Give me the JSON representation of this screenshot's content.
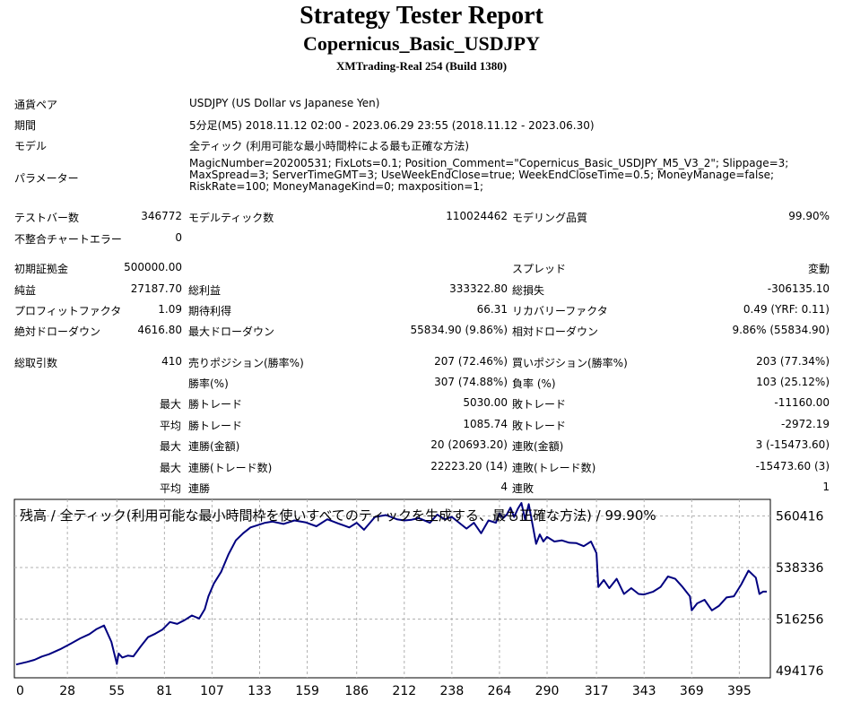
{
  "report": {
    "title": "Strategy Tester Report",
    "subtitle": "Copernicus_Basic_USDJPY",
    "server": "XMTrading-Real 254 (Build 1380)"
  },
  "info": {
    "pair_label": "通貨ペア",
    "pair_value": "USDJPY (US Dollar vs Japanese Yen)",
    "period_label": "期間",
    "period_value": "5分足(M5) 2018.11.12 02:00 - 2023.06.29 23:55 (2018.11.12 - 2023.06.30)",
    "model_label": "モデル",
    "model_value": "全ティック (利用可能な最小時間枠による最も正確な方法)",
    "params_label": "パラメーター",
    "params_value": "MagicNumber=20200531; FixLots=0.1; Position_Comment=\"Copernicus_Basic_USDJPY_M5_V3_2\"; Slippage=3; MaxSpread=3; ServerTimeGMT=3; UseWeekEndClose=true; WeekEndCloseTime=0.5; MoneyManage=false; RiskRate=100; MoneyManageKind=0; maxposition=1;"
  },
  "stats": {
    "bars_label": "テストバー数",
    "bars": "346772",
    "ticks_label": "モデルティック数",
    "ticks": "110024462",
    "quality_label": "モデリング品質",
    "quality": "99.90%",
    "mismatch_label": "不整合チャートエラー",
    "mismatch": "0",
    "deposit_label": "初期証拠金",
    "deposit": "500000.00",
    "spread_label": "スプレッド",
    "spread": "変動",
    "net_label": "純益",
    "net": "27187.70",
    "gross_profit_label": "総利益",
    "gross_profit": "333322.80",
    "gross_loss_label": "総損失",
    "gross_loss": "-306135.10",
    "pf_label": "プロフィットファクタ",
    "pf": "1.09",
    "expected_label": "期待利得",
    "expected": "66.31",
    "recovery_label": "リカバリーファクタ",
    "recovery": "0.49 (YRF: 0.11)",
    "abs_dd_label": "絶対ドローダウン",
    "abs_dd": "4616.80",
    "max_dd_label": "最大ドローダウン",
    "max_dd": "55834.90 (9.86%)",
    "rel_dd_label": "相対ドローダウン",
    "rel_dd": "9.86% (55834.90)",
    "total_label": "総取引数",
    "total": "410",
    "short_label": "売りポジション(勝率%)",
    "short": "207 (72.46%)",
    "long_label": "買いポジション(勝率%)",
    "long": "203 (77.34%)",
    "winrate_label": "勝率(%)",
    "winrate": "307 (74.88%)",
    "lossrate_label": "負率 (%)",
    "lossrate": "103 (25.12%)",
    "max_label": "最大",
    "avg_label": "平均",
    "win_trade_label": "勝トレード",
    "loss_trade_label": "敗トレード",
    "largest_win": "5030.00",
    "largest_loss": "-11160.00",
    "avg_win": "1085.74",
    "avg_loss": "-2972.19",
    "consec_win_money_label": "連勝(金額)",
    "consec_win_money": "20 (20693.20)",
    "consec_loss_money_label": "連敗(金額)",
    "consec_loss_money": "3 (-15473.60)",
    "consec_win_count_label": "連勝(トレード数)",
    "consec_win_count": "22223.20 (14)",
    "consec_loss_count_label": "連敗(トレード数)",
    "consec_loss_count": "-15473.60 (3)",
    "avg_consec_win_label": "連勝",
    "avg_consec_win": "4",
    "avg_consec_loss_label": "連敗",
    "avg_consec_loss": "1"
  },
  "chart_data": {
    "type": "line",
    "title": "残高 / 全ティック(利用可能な最小時間枠を使いすべてのティックを生成する、最も正確な方法) / 99.90%",
    "x_ticks": [
      0,
      28,
      55,
      81,
      107,
      133,
      159,
      186,
      212,
      238,
      264,
      290,
      317,
      343,
      369,
      395
    ],
    "y_ticks": [
      494176,
      516256,
      538336,
      560416
    ],
    "xlim": [
      0,
      410
    ],
    "ylim": [
      494176,
      566000
    ],
    "grid": true,
    "line_color": "#000080",
    "series": [
      {
        "x": [
          0,
          6,
          10,
          14,
          18,
          24,
          30,
          35,
          40,
          44,
          48,
          52,
          55,
          56,
          58,
          61,
          64,
          68,
          72,
          76,
          80,
          84,
          88,
          92,
          96,
          100,
          103,
          105,
          108,
          112,
          116,
          120,
          124,
          128,
          132,
          136,
          140,
          146,
          152,
          158,
          164,
          170,
          176,
          182,
          186,
          190,
          196,
          202,
          208,
          212,
          216,
          220,
          226,
          230,
          234,
          238,
          242,
          246,
          250,
          254,
          258,
          262,
          264,
          266,
          268,
          270,
          272,
          274,
          276,
          278,
          280,
          282,
          284,
          286,
          288,
          290,
          294,
          298,
          302,
          306,
          310,
          314,
          317,
          318,
          321,
          324,
          328,
          332,
          336,
          340,
          343,
          348,
          352,
          356,
          360,
          364,
          368,
          369,
          372,
          376,
          380,
          384,
          388,
          392,
          396,
          400,
          404,
          406,
          408,
          410
        ],
        "y": [
          496800,
          497900,
          498800,
          500200,
          501200,
          503300,
          505800,
          508000,
          509800,
          512000,
          513500,
          506500,
          497000,
          501500,
          499800,
          500600,
          500300,
          504500,
          508500,
          510000,
          511800,
          515000,
          514200,
          515800,
          517800,
          516500,
          520500,
          526000,
          531500,
          536500,
          544000,
          550000,
          553000,
          555500,
          556500,
          557500,
          558000,
          557000,
          558500,
          557700,
          556000,
          559000,
          557200,
          555500,
          557500,
          554500,
          560000,
          560800,
          559000,
          558500,
          558800,
          559500,
          557500,
          561000,
          559000,
          560000,
          557500,
          555000,
          557500,
          553000,
          558500,
          557500,
          561500,
          559500,
          561000,
          564000,
          560000,
          563500,
          566000,
          559000,
          565500,
          557000,
          548500,
          552500,
          549500,
          551500,
          549500,
          550000,
          549000,
          548800,
          547500,
          549500,
          544500,
          530000,
          533000,
          529500,
          533500,
          527000,
          529500,
          527000,
          526800,
          528000,
          530000,
          534500,
          533500,
          530000,
          526000,
          520000,
          523000,
          524500,
          520000,
          522000,
          525500,
          526000,
          531000,
          537000,
          534000,
          527000,
          528000,
          528000
        ]
      }
    ]
  }
}
